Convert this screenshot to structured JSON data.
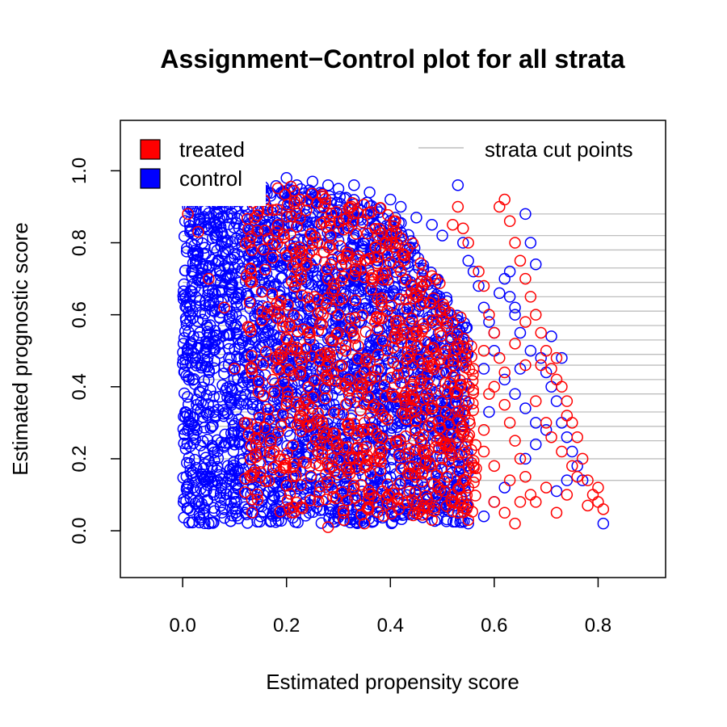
{
  "chart_data": {
    "type": "scatter",
    "title": "Assignment−Control plot for all strata",
    "xlabel": "Estimated propensity score",
    "ylabel": "Estimated prognostic score",
    "xlim": [
      -0.12,
      0.93
    ],
    "ylim": [
      -0.13,
      1.14
    ],
    "x_ticks": [
      "0.0",
      "0.2",
      "0.4",
      "0.6",
      "0.8"
    ],
    "x_tick_values": [
      0.0,
      0.2,
      0.4,
      0.6,
      0.8
    ],
    "y_ticks": [
      "0.0",
      "0.2",
      "0.4",
      "0.6",
      "0.8",
      "1.0"
    ],
    "y_tick_values": [
      0.0,
      0.2,
      0.4,
      0.6,
      0.8,
      1.0
    ],
    "grid": false,
    "marker": "open-circle",
    "legend": {
      "position": "top",
      "items": [
        {
          "label": "treated",
          "color": "#ff0000",
          "kind": "filled-square"
        },
        {
          "label": "control",
          "color": "#0000ff",
          "kind": "filled-square"
        },
        {
          "label": "strata cut points",
          "color": "#bebebe",
          "kind": "line"
        }
      ]
    },
    "strata_cut_points": [
      0.14,
      0.2,
      0.25,
      0.29,
      0.33,
      0.38,
      0.42,
      0.46,
      0.49,
      0.53,
      0.57,
      0.61,
      0.65,
      0.69,
      0.73,
      0.78,
      0.82,
      0.88
    ],
    "series": [
      {
        "name": "treated",
        "color": "#ff0000",
        "points": [
          [
            0.01,
            0.88
          ],
          [
            0.03,
            0.83
          ],
          [
            0.05,
            0.7
          ],
          [
            0.08,
            0.62
          ],
          [
            0.1,
            0.45
          ],
          [
            0.12,
            0.3
          ],
          [
            0.15,
            0.22
          ],
          [
            0.18,
            0.18
          ],
          [
            0.2,
            0.35
          ],
          [
            0.22,
            0.5
          ],
          [
            0.25,
            0.8
          ],
          [
            0.28,
            0.7
          ],
          [
            0.3,
            0.6
          ],
          [
            0.32,
            0.42
          ],
          [
            0.35,
            0.3
          ],
          [
            0.38,
            0.2
          ],
          [
            0.28,
            0.01
          ],
          [
            0.31,
            0.03
          ],
          [
            0.35,
            0.02
          ],
          [
            0.4,
            0.8
          ],
          [
            0.42,
            0.72
          ],
          [
            0.44,
            0.66
          ],
          [
            0.45,
            0.55
          ],
          [
            0.46,
            0.42
          ],
          [
            0.47,
            0.38
          ],
          [
            0.48,
            0.3
          ],
          [
            0.49,
            0.25
          ],
          [
            0.5,
            0.2
          ],
          [
            0.51,
            0.15
          ],
          [
            0.52,
            0.1
          ],
          [
            0.53,
            0.05
          ],
          [
            0.54,
            0.08
          ],
          [
            0.55,
            0.12
          ],
          [
            0.56,
            0.18
          ],
          [
            0.58,
            0.22
          ],
          [
            0.6,
            0.08
          ],
          [
            0.62,
            0.05
          ],
          [
            0.64,
            0.02
          ],
          [
            0.48,
            0.03
          ],
          [
            0.55,
            0.03
          ],
          [
            0.52,
            0.85
          ],
          [
            0.53,
            0.9
          ],
          [
            0.54,
            0.84
          ],
          [
            0.55,
            0.8
          ],
          [
            0.57,
            0.72
          ],
          [
            0.58,
            0.68
          ],
          [
            0.59,
            0.6
          ],
          [
            0.6,
            0.55
          ],
          [
            0.61,
            0.9
          ],
          [
            0.62,
            0.92
          ],
          [
            0.63,
            0.86
          ],
          [
            0.64,
            0.8
          ],
          [
            0.65,
            0.75
          ],
          [
            0.66,
            0.7
          ],
          [
            0.67,
            0.65
          ],
          [
            0.68,
            0.6
          ],
          [
            0.69,
            0.55
          ],
          [
            0.7,
            0.5
          ],
          [
            0.71,
            0.45
          ],
          [
            0.72,
            0.42
          ],
          [
            0.73,
            0.4
          ],
          [
            0.74,
            0.36
          ],
          [
            0.75,
            0.3
          ],
          [
            0.76,
            0.26
          ],
          [
            0.77,
            0.2
          ],
          [
            0.78,
            0.14
          ],
          [
            0.79,
            0.1
          ],
          [
            0.8,
            0.08
          ],
          [
            0.81,
            0.06
          ],
          [
            0.6,
            0.4
          ],
          [
            0.62,
            0.35
          ],
          [
            0.63,
            0.3
          ],
          [
            0.64,
            0.25
          ],
          [
            0.65,
            0.2
          ],
          [
            0.66,
            0.15
          ],
          [
            0.67,
            0.1
          ],
          [
            0.68,
            0.08
          ],
          [
            0.7,
            0.12
          ],
          [
            0.72,
            0.05
          ],
          [
            0.74,
            0.1
          ],
          [
            0.76,
            0.15
          ],
          [
            0.78,
            0.07
          ],
          [
            0.8,
            0.12
          ],
          [
            0.56,
            0.45
          ],
          [
            0.58,
            0.5
          ],
          [
            0.59,
            0.38
          ],
          [
            0.61,
            0.48
          ],
          [
            0.62,
            0.44
          ],
          [
            0.64,
            0.52
          ],
          [
            0.66,
            0.58
          ],
          [
            0.68,
            0.36
          ],
          [
            0.7,
            0.3
          ],
          [
            0.71,
            0.26
          ],
          [
            0.73,
            0.22
          ],
          [
            0.75,
            0.18
          ],
          [
            0.66,
            0.46
          ],
          [
            0.69,
            0.46
          ],
          [
            0.72,
            0.48
          ],
          [
            0.74,
            0.32
          ],
          [
            0.58,
            0.28
          ],
          [
            0.6,
            0.18
          ],
          [
            0.63,
            0.14
          ],
          [
            0.65,
            0.08
          ]
        ],
        "dense_region": {
          "x_min": 0.12,
          "x_max": 0.57,
          "y_min": 0.04,
          "y_max": 0.96,
          "count": 850
        }
      },
      {
        "name": "control",
        "color": "#0000ff",
        "points": [
          [
            0.0,
            0.95
          ],
          [
            0.01,
            0.9
          ],
          [
            0.02,
            0.12
          ],
          [
            0.03,
            0.08
          ],
          [
            0.04,
            0.05
          ],
          [
            0.05,
            0.02
          ],
          [
            0.06,
            0.1
          ],
          [
            0.08,
            0.06
          ],
          [
            0.1,
            0.08
          ],
          [
            0.12,
            0.05
          ],
          [
            0.15,
            0.04
          ],
          [
            0.18,
            0.06
          ],
          [
            0.2,
            0.98
          ],
          [
            0.22,
            0.96
          ],
          [
            0.25,
            0.97
          ],
          [
            0.28,
            0.96
          ],
          [
            0.3,
            0.95
          ],
          [
            0.33,
            0.96
          ],
          [
            0.36,
            0.94
          ],
          [
            0.4,
            0.92
          ],
          [
            0.42,
            0.9
          ],
          [
            0.45,
            0.87
          ],
          [
            0.48,
            0.85
          ],
          [
            0.5,
            0.82
          ],
          [
            0.53,
            0.96
          ],
          [
            0.54,
            0.8
          ],
          [
            0.55,
            0.75
          ],
          [
            0.56,
            0.72
          ],
          [
            0.57,
            0.68
          ],
          [
            0.58,
            0.62
          ],
          [
            0.59,
            0.58
          ],
          [
            0.6,
            0.55
          ],
          [
            0.62,
            0.7
          ],
          [
            0.63,
            0.65
          ],
          [
            0.64,
            0.62
          ],
          [
            0.65,
            0.55
          ],
          [
            0.66,
            0.88
          ],
          [
            0.67,
            0.8
          ],
          [
            0.68,
            0.74
          ],
          [
            0.69,
            0.48
          ],
          [
            0.7,
            0.44
          ],
          [
            0.71,
            0.4
          ],
          [
            0.72,
            0.36
          ],
          [
            0.73,
            0.3
          ],
          [
            0.74,
            0.26
          ],
          [
            0.75,
            0.22
          ],
          [
            0.76,
            0.18
          ],
          [
            0.77,
            0.14
          ],
          [
            0.72,
            0.11
          ],
          [
            0.74,
            0.14
          ],
          [
            0.81,
            0.02
          ],
          [
            0.55,
            0.02
          ],
          [
            0.58,
            0.04
          ],
          [
            0.6,
            0.08
          ],
          [
            0.62,
            0.12
          ],
          [
            0.66,
            0.2
          ],
          [
            0.68,
            0.24
          ],
          [
            0.7,
            0.28
          ],
          [
            0.58,
            0.45
          ],
          [
            0.6,
            0.5
          ],
          [
            0.62,
            0.42
          ],
          [
            0.64,
            0.38
          ],
          [
            0.66,
            0.34
          ],
          [
            0.68,
            0.3
          ],
          [
            0.64,
            0.6
          ],
          [
            0.65,
            0.45
          ],
          [
            0.67,
            0.5
          ],
          [
            0.71,
            0.54
          ],
          [
            0.73,
            0.48
          ],
          [
            0.61,
            0.66
          ],
          [
            0.63,
            0.72
          ],
          [
            0.59,
            0.33
          ]
        ],
        "dense_region": {
          "x_min": 0.0,
          "x_max": 0.55,
          "y_min": 0.02,
          "y_max": 0.98,
          "count": 2600
        }
      }
    ]
  }
}
